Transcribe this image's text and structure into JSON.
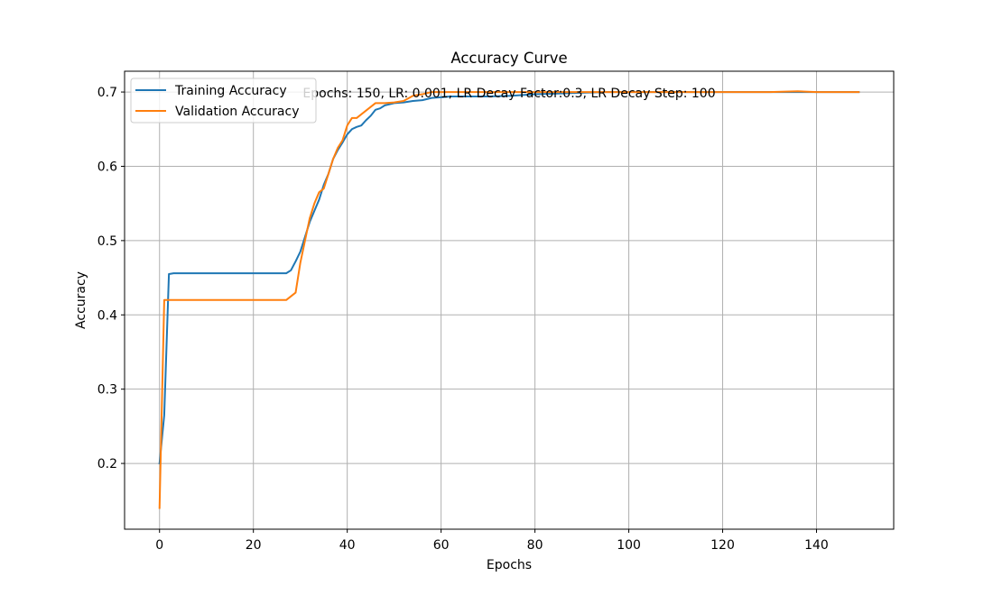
{
  "chart_data": {
    "type": "line",
    "title": "Accuracy Curve",
    "xlabel": "Epochs",
    "ylabel": "Accuracy",
    "annotation": "Epochs: 150, LR: 0.001, LR Decay Factor:0.3, LR Decay Step: 100",
    "xlim": [
      -7.45,
      156.45
    ],
    "ylim": [
      0.1115,
      0.728
    ],
    "xticks": [
      0,
      20,
      40,
      60,
      80,
      100,
      120,
      140
    ],
    "yticks": [
      0.2,
      0.3,
      0.4,
      0.5,
      0.6,
      0.7
    ],
    "ytick_labels": [
      "0.2",
      "0.3",
      "0.4",
      "0.5",
      "0.6",
      "0.7"
    ],
    "grid": true,
    "legend_position": "top-left",
    "series": [
      {
        "name": "Training Accuracy",
        "color": "#1f77b4",
        "points": [
          [
            0,
            0.2
          ],
          [
            1,
            0.265
          ],
          [
            2,
            0.455
          ],
          [
            3,
            0.456
          ],
          [
            10,
            0.456
          ],
          [
            20,
            0.456
          ],
          [
            26,
            0.456
          ],
          [
            27,
            0.456
          ],
          [
            28,
            0.46
          ],
          [
            29,
            0.472
          ],
          [
            30,
            0.485
          ],
          [
            31,
            0.505
          ],
          [
            32,
            0.525
          ],
          [
            33,
            0.54
          ],
          [
            34,
            0.555
          ],
          [
            35,
            0.575
          ],
          [
            36,
            0.59
          ],
          [
            37,
            0.61
          ],
          [
            38,
            0.622
          ],
          [
            39,
            0.632
          ],
          [
            40,
            0.643
          ],
          [
            41,
            0.65
          ],
          [
            42,
            0.653
          ],
          [
            43,
            0.655
          ],
          [
            44,
            0.662
          ],
          [
            45,
            0.668
          ],
          [
            46,
            0.676
          ],
          [
            47,
            0.678
          ],
          [
            48,
            0.682
          ],
          [
            50,
            0.685
          ],
          [
            52,
            0.686
          ],
          [
            54,
            0.688
          ],
          [
            56,
            0.689
          ],
          [
            58,
            0.692
          ],
          [
            60,
            0.693
          ],
          [
            62,
            0.694
          ],
          [
            66,
            0.694
          ],
          [
            70,
            0.694
          ],
          [
            75,
            0.695
          ],
          [
            80,
            0.697
          ],
          [
            85,
            0.698
          ],
          [
            90,
            0.699
          ],
          [
            95,
            0.7
          ],
          [
            100,
            0.7
          ],
          [
            110,
            0.7
          ],
          [
            120,
            0.7
          ],
          [
            130,
            0.7
          ],
          [
            140,
            0.7
          ],
          [
            149,
            0.7
          ]
        ]
      },
      {
        "name": "Validation Accuracy",
        "color": "#ff7f0e",
        "points": [
          [
            0,
            0.14
          ],
          [
            1,
            0.42
          ],
          [
            5,
            0.42
          ],
          [
            10,
            0.42
          ],
          [
            20,
            0.42
          ],
          [
            26,
            0.42
          ],
          [
            27,
            0.42
          ],
          [
            28,
            0.425
          ],
          [
            29,
            0.43
          ],
          [
            30,
            0.47
          ],
          [
            31,
            0.5
          ],
          [
            32,
            0.53
          ],
          [
            33,
            0.55
          ],
          [
            34,
            0.565
          ],
          [
            35,
            0.57
          ],
          [
            36,
            0.59
          ],
          [
            37,
            0.61
          ],
          [
            38,
            0.625
          ],
          [
            39,
            0.635
          ],
          [
            40,
            0.655
          ],
          [
            41,
            0.665
          ],
          [
            42,
            0.665
          ],
          [
            44,
            0.675
          ],
          [
            46,
            0.685
          ],
          [
            48,
            0.685
          ],
          [
            50,
            0.686
          ],
          [
            52,
            0.688
          ],
          [
            54,
            0.695
          ],
          [
            56,
            0.697
          ],
          [
            58,
            0.7
          ],
          [
            60,
            0.7
          ],
          [
            62,
            0.7
          ],
          [
            70,
            0.7
          ],
          [
            80,
            0.7
          ],
          [
            90,
            0.7
          ],
          [
            100,
            0.7
          ],
          [
            110,
            0.7
          ],
          [
            120,
            0.7
          ],
          [
            130,
            0.7
          ],
          [
            136,
            0.701
          ],
          [
            140,
            0.7
          ],
          [
            149,
            0.7
          ]
        ]
      }
    ]
  }
}
